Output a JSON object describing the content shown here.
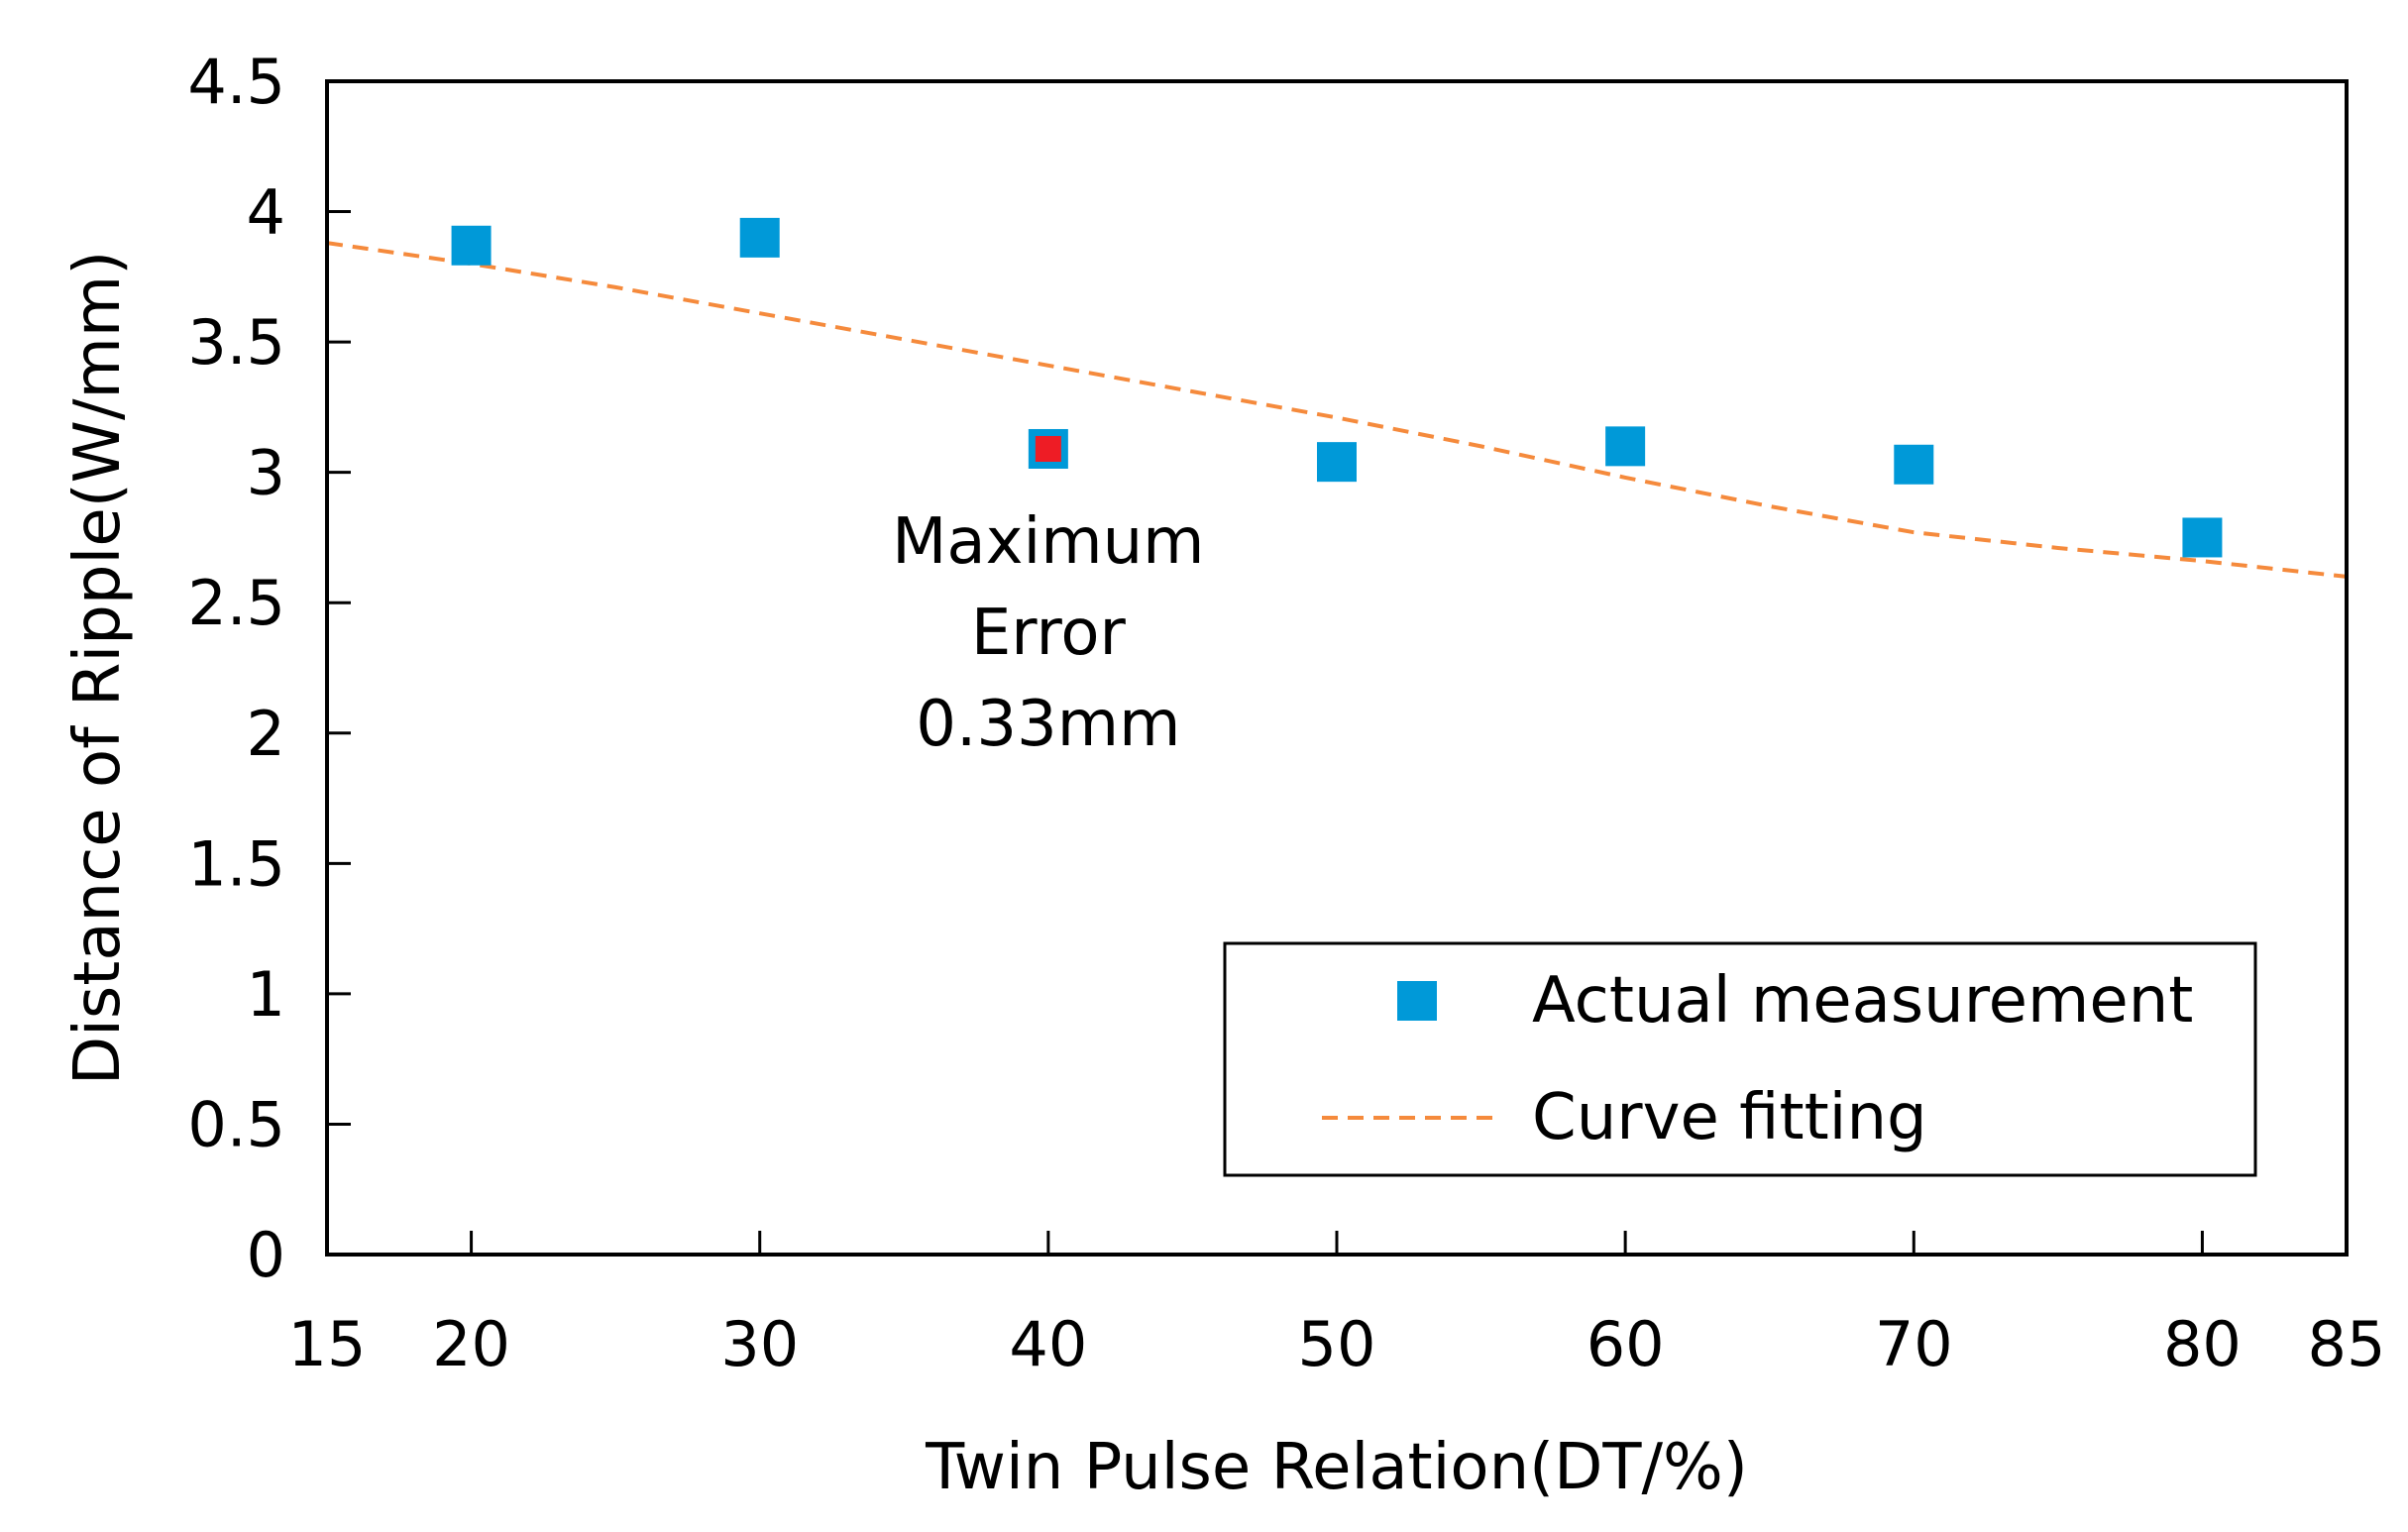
{
  "chart_data": {
    "type": "scatter",
    "xlabel": "Twin Pulse Relation(DT/%)",
    "ylabel": "Distance of Ripple(W/mm)",
    "xlim": [
      15,
      85
    ],
    "ylim": [
      0,
      4.5
    ],
    "x_ticks": [
      "15",
      "20",
      "30",
      "40",
      "50",
      "60",
      "70",
      "80",
      "85"
    ],
    "x_tick_values": [
      15,
      20,
      30,
      40,
      50,
      60,
      70,
      80,
      85
    ],
    "y_ticks": [
      "0",
      "0.5",
      "1",
      "1.5",
      "2",
      "2.5",
      "3",
      "3.5",
      "4",
      "4.5"
    ],
    "y_tick_values": [
      0,
      0.5,
      1,
      1.5,
      2,
      2.5,
      3,
      3.5,
      4,
      4.5
    ],
    "grid": false,
    "legend_position": "bottom-right",
    "series": [
      {
        "name": "Actual measurement",
        "kind": "scatter",
        "color": "#0099d8",
        "x": [
          20,
          30,
          40,
          50,
          60,
          70,
          80
        ],
        "y": [
          3.87,
          3.9,
          3.09,
          3.04,
          3.1,
          3.03,
          2.75
        ]
      },
      {
        "name": "Curve fitting",
        "kind": "line",
        "style": "dashed",
        "color": "#f58a3c",
        "x": [
          15,
          20,
          25,
          30,
          35,
          40,
          45,
          50,
          55,
          60,
          65,
          70,
          75,
          80,
          85
        ],
        "y": [
          3.88,
          3.8,
          3.71,
          3.61,
          3.51,
          3.41,
          3.31,
          3.21,
          3.1,
          2.98,
          2.87,
          2.77,
          2.71,
          2.66,
          2.6
        ]
      }
    ],
    "highlight": {
      "x": 40,
      "y": 3.09,
      "color": "#ee1c25"
    },
    "annotation": {
      "lines": [
        "Maximum",
        "Error",
        "0.33mm"
      ],
      "anchor_x": 40
    }
  }
}
